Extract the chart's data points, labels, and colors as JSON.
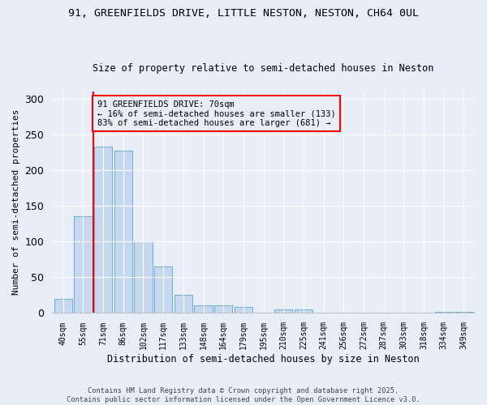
{
  "title1": "91, GREENFIELDS DRIVE, LITTLE NESTON, NESTON, CH64 0UL",
  "title2": "Size of property relative to semi-detached houses in Neston",
  "xlabel": "Distribution of semi-detached houses by size in Neston",
  "ylabel": "Number of semi-detached properties",
  "categories": [
    "40sqm",
    "55sqm",
    "71sqm",
    "86sqm",
    "102sqm",
    "117sqm",
    "133sqm",
    "148sqm",
    "164sqm",
    "179sqm",
    "195sqm",
    "210sqm",
    "225sqm",
    "241sqm",
    "256sqm",
    "272sqm",
    "287sqm",
    "303sqm",
    "318sqm",
    "334sqm",
    "349sqm"
  ],
  "values": [
    20,
    135,
    233,
    227,
    100,
    65,
    25,
    11,
    11,
    8,
    0,
    5,
    5,
    0,
    0,
    0,
    0,
    0,
    0,
    2,
    2
  ],
  "bar_color": "#c5d8f0",
  "bar_edge_color": "#6aaed6",
  "annotation_title": "91 GREENFIELDS DRIVE: 70sqm",
  "annotation_line1": "← 16% of semi-detached houses are smaller (133)",
  "annotation_line2": "83% of semi-detached houses are larger (681) →",
  "footer1": "Contains HM Land Registry data © Crown copyright and database right 2025.",
  "footer2": "Contains public sector information licensed under the Open Government Licence v3.0.",
  "ylim": [
    0,
    310
  ],
  "yticks": [
    0,
    50,
    100,
    150,
    200,
    250,
    300
  ],
  "background_color": "#e8eef8",
  "red_line_x": 1.5
}
